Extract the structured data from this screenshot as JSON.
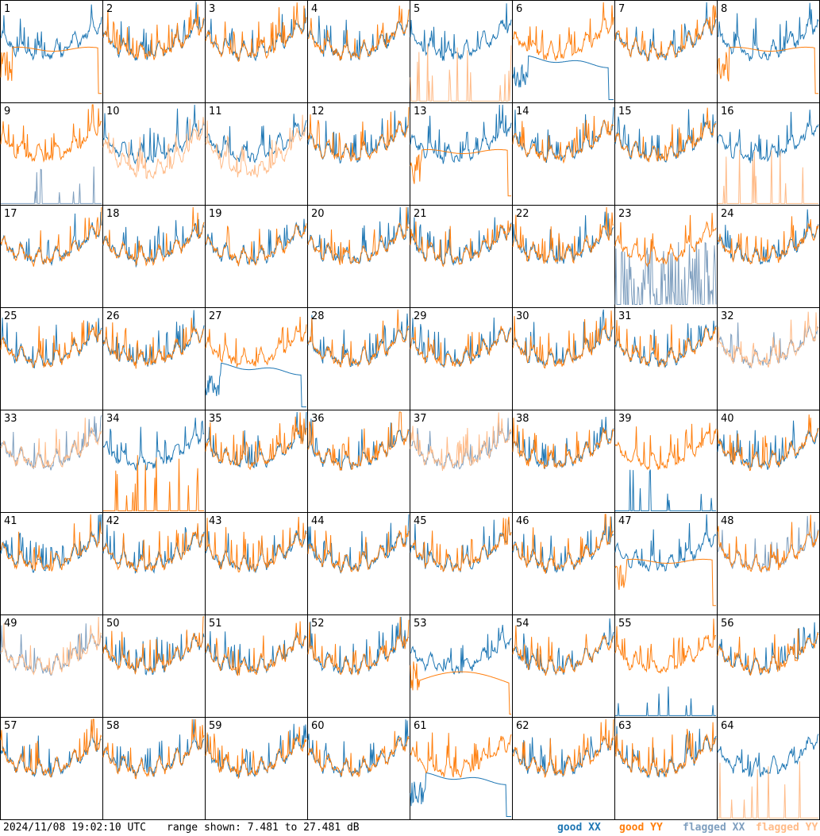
{
  "timestamp": "2024/11/08 19:02:10 UTC",
  "range_text": "range shown: 7.481 to 27.481 dB",
  "colors": {
    "good_xx": "#1f77b4",
    "good_yy": "#ff7f0e",
    "flagged_xx": "#7f9fbf",
    "flagged_yy": "#ffbb88"
  },
  "chart_data": {
    "type": "line",
    "layout": "8x8 small multiples",
    "y_range_db": [
      7.481,
      27.481
    ],
    "legend": [
      {
        "key": "good_xx",
        "label": "good XX"
      },
      {
        "key": "good_yy",
        "label": "good YY"
      },
      {
        "key": "flagged_xx",
        "label": "flagged XX"
      },
      {
        "key": "flagged_yy",
        "label": "flagged YY"
      }
    ],
    "panels": [
      {
        "id": "1",
        "xx": "good",
        "yy": "good",
        "style": "divergent"
      },
      {
        "id": "2",
        "xx": "good",
        "yy": "good",
        "style": "normal"
      },
      {
        "id": "3",
        "xx": "good",
        "yy": "good",
        "style": "normal"
      },
      {
        "id": "4",
        "xx": "good",
        "yy": "good",
        "style": "normal"
      },
      {
        "id": "5",
        "xx": "good",
        "yy": "flagged",
        "style": "yy_spikes"
      },
      {
        "id": "6",
        "xx": "good",
        "yy": "good",
        "style": "divergent_xx_low"
      },
      {
        "id": "7",
        "xx": "good",
        "yy": "good",
        "style": "normal"
      },
      {
        "id": "8",
        "xx": "good",
        "yy": "good",
        "style": "divergent"
      },
      {
        "id": "9",
        "xx": "flagged",
        "yy": "good",
        "style": "xx_spikes"
      },
      {
        "id": "10",
        "xx": "good",
        "yy": "flagged",
        "style": "normal_low"
      },
      {
        "id": "11",
        "xx": "good",
        "yy": "flagged",
        "style": "normal_low"
      },
      {
        "id": "12",
        "xx": "good",
        "yy": "good",
        "style": "normal"
      },
      {
        "id": "13",
        "xx": "good",
        "yy": "good",
        "style": "divergent"
      },
      {
        "id": "14",
        "xx": "good",
        "yy": "good",
        "style": "normal"
      },
      {
        "id": "15",
        "xx": "good",
        "yy": "good",
        "style": "normal"
      },
      {
        "id": "16",
        "xx": "good",
        "yy": "flagged",
        "style": "yy_spikes"
      },
      {
        "id": "17",
        "xx": "good",
        "yy": "good",
        "style": "normal"
      },
      {
        "id": "18",
        "xx": "good",
        "yy": "good",
        "style": "normal"
      },
      {
        "id": "19",
        "xx": "good",
        "yy": "good",
        "style": "normal"
      },
      {
        "id": "20",
        "xx": "good",
        "yy": "good",
        "style": "normal"
      },
      {
        "id": "21",
        "xx": "good",
        "yy": "good",
        "style": "normal"
      },
      {
        "id": "22",
        "xx": "good",
        "yy": "good",
        "style": "normal"
      },
      {
        "id": "23",
        "xx": "flagged",
        "yy": "good",
        "style": "xx_noisy"
      },
      {
        "id": "24",
        "xx": "good",
        "yy": "good",
        "style": "normal"
      },
      {
        "id": "25",
        "xx": "good",
        "yy": "good",
        "style": "normal"
      },
      {
        "id": "26",
        "xx": "good",
        "yy": "good",
        "style": "normal"
      },
      {
        "id": "27",
        "xx": "good",
        "yy": "good",
        "style": "divergent_xx_low"
      },
      {
        "id": "28",
        "xx": "good",
        "yy": "good",
        "style": "normal"
      },
      {
        "id": "29",
        "xx": "good",
        "yy": "good",
        "style": "normal"
      },
      {
        "id": "30",
        "xx": "good",
        "yy": "good",
        "style": "normal"
      },
      {
        "id": "31",
        "xx": "good",
        "yy": "good",
        "style": "normal"
      },
      {
        "id": "32",
        "xx": "flagged",
        "yy": "flagged",
        "style": "normal"
      },
      {
        "id": "33",
        "xx": "flagged",
        "yy": "flagged",
        "style": "normal"
      },
      {
        "id": "34",
        "xx": "good",
        "yy": "good",
        "style": "yy_bursts"
      },
      {
        "id": "35",
        "xx": "good",
        "yy": "good",
        "style": "normal"
      },
      {
        "id": "36",
        "xx": "good",
        "yy": "good",
        "style": "normal"
      },
      {
        "id": "37",
        "xx": "flagged",
        "yy": "flagged",
        "style": "normal"
      },
      {
        "id": "38",
        "xx": "good",
        "yy": "good",
        "style": "normal"
      },
      {
        "id": "39",
        "xx": "good",
        "yy": "good",
        "style": "xx_spikes"
      },
      {
        "id": "40",
        "xx": "good",
        "yy": "good",
        "style": "normal"
      },
      {
        "id": "41",
        "xx": "good",
        "yy": "good",
        "style": "normal"
      },
      {
        "id": "42",
        "xx": "good",
        "yy": "good",
        "style": "normal"
      },
      {
        "id": "43",
        "xx": "good",
        "yy": "good",
        "style": "normal"
      },
      {
        "id": "44",
        "xx": "good",
        "yy": "good",
        "style": "normal"
      },
      {
        "id": "45",
        "xx": "good",
        "yy": "good",
        "style": "normal"
      },
      {
        "id": "46",
        "xx": "good",
        "yy": "good",
        "style": "normal"
      },
      {
        "id": "47",
        "xx": "good",
        "yy": "good",
        "style": "divergent"
      },
      {
        "id": "48",
        "xx": "flagged",
        "yy": "good",
        "style": "normal"
      },
      {
        "id": "49",
        "xx": "flagged",
        "yy": "flagged",
        "style": "normal"
      },
      {
        "id": "50",
        "xx": "good",
        "yy": "good",
        "style": "normal"
      },
      {
        "id": "51",
        "xx": "good",
        "yy": "good",
        "style": "normal"
      },
      {
        "id": "52",
        "xx": "good",
        "yy": "good",
        "style": "normal"
      },
      {
        "id": "53",
        "xx": "good",
        "yy": "good",
        "style": "divergent_yy_low"
      },
      {
        "id": "54",
        "xx": "good",
        "yy": "good",
        "style": "normal"
      },
      {
        "id": "55",
        "xx": "good",
        "yy": "good",
        "style": "xx_spikes"
      },
      {
        "id": "56",
        "xx": "good",
        "yy": "good",
        "style": "normal"
      },
      {
        "id": "57",
        "xx": "good",
        "yy": "good",
        "style": "normal"
      },
      {
        "id": "58",
        "xx": "good",
        "yy": "good",
        "style": "normal"
      },
      {
        "id": "59",
        "xx": "good",
        "yy": "good",
        "style": "normal"
      },
      {
        "id": "60",
        "xx": "good",
        "yy": "good",
        "style": "normal"
      },
      {
        "id": "61",
        "xx": "good",
        "yy": "good",
        "style": "divergent_xx_low"
      },
      {
        "id": "62",
        "xx": "good",
        "yy": "good",
        "style": "normal"
      },
      {
        "id": "63",
        "xx": "good",
        "yy": "good",
        "style": "normal"
      },
      {
        "id": "64",
        "xx": "good",
        "yy": "flagged",
        "style": "yy_spikes"
      }
    ]
  }
}
